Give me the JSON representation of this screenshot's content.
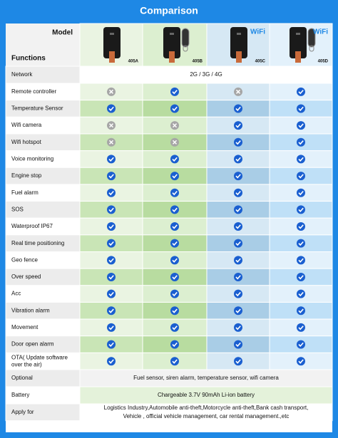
{
  "title": "Comparison",
  "header": {
    "model_label": "Model",
    "functions_label": "Functions",
    "models": [
      {
        "name": "405A",
        "remote": false
      },
      {
        "name": "405B",
        "remote": true
      },
      {
        "name": "405C",
        "remote": false,
        "badge": "WiFi"
      },
      {
        "name": "405D",
        "remote": true,
        "badge": "WiFi"
      }
    ]
  },
  "rows": [
    {
      "label": [
        "Network"
      ],
      "span": [
        "2G / 3G / 4G"
      ]
    },
    {
      "label": [
        "Remote controller"
      ],
      "support": [
        false,
        true,
        false,
        true
      ]
    },
    {
      "label": [
        "Temperature Sensor"
      ],
      "support": [
        true,
        true,
        true,
        true
      ]
    },
    {
      "label": [
        "Wifi camera"
      ],
      "support": [
        false,
        false,
        true,
        true
      ]
    },
    {
      "label": [
        "Wifi hotspot"
      ],
      "support": [
        false,
        false,
        true,
        true
      ]
    },
    {
      "label": [
        "Voice monitoring"
      ],
      "support": [
        true,
        true,
        true,
        true
      ]
    },
    {
      "label": [
        "Engine stop"
      ],
      "support": [
        true,
        true,
        true,
        true
      ]
    },
    {
      "label": [
        "Fuel alarm"
      ],
      "support": [
        true,
        true,
        true,
        true
      ]
    },
    {
      "label": [
        "SOS"
      ],
      "support": [
        true,
        true,
        true,
        true
      ]
    },
    {
      "label": [
        "Waterproof IP67"
      ],
      "support": [
        true,
        true,
        true,
        true
      ]
    },
    {
      "label": [
        "Real time positioning"
      ],
      "support": [
        true,
        true,
        true,
        true
      ]
    },
    {
      "label": [
        "Geo fence"
      ],
      "support": [
        true,
        true,
        true,
        true
      ]
    },
    {
      "label": [
        "Over speed"
      ],
      "support": [
        true,
        true,
        true,
        true
      ]
    },
    {
      "label": [
        "Acc"
      ],
      "support": [
        true,
        true,
        true,
        true
      ]
    },
    {
      "label": [
        "Vibration alarm"
      ],
      "support": [
        true,
        true,
        true,
        true
      ]
    },
    {
      "label": [
        "Movement"
      ],
      "support": [
        true,
        true,
        true,
        true
      ]
    },
    {
      "label": [
        "Door open alarm"
      ],
      "support": [
        true,
        true,
        true,
        true
      ]
    },
    {
      "label": [
        "OTA( Update software",
        "over the air)"
      ],
      "support": [
        true,
        true,
        true,
        true
      ]
    },
    {
      "label": [
        "Optional"
      ],
      "span": [
        "Fuel sensor, siren alarm, temperature sensor, wifi camera"
      ]
    },
    {
      "label": [
        "Battery"
      ],
      "span": [
        "Chargeable 3.7V 90mAh Li-ion battery"
      ]
    },
    {
      "label": [
        "Apply for"
      ],
      "span": [
        "Logistics Industry,Automobile anti-theft,Motorcycle anti-theft,Bank cash transport,",
        "Vehicle , official vehicle management, car rental management.,etc"
      ]
    }
  ]
}
